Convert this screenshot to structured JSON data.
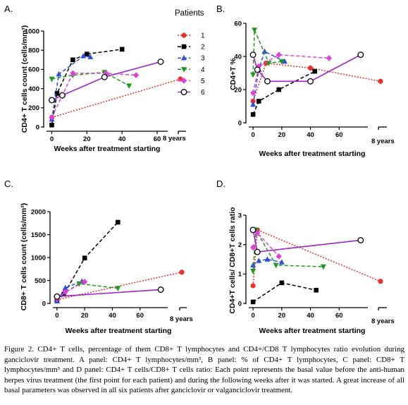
{
  "figure": {
    "caption": "Figure 2. CD4+ T cells,  percentage of them CD8+ T lymphocytes and CD4+/CD8 T lymphocytes ratio evolution during ganciclovir treatment. A panel: CD4+ T lymphocytes/mm³, B panel: % of CD4+ T lymphocytes, C panel:  CD8+ T lymphocytes/mm³ and D panel: CD4+ T cells/CD8+ T cells ratio: Each point represents the basal value before the anti-human herpes virus treatment (the first point for each patient) and during the following weeks after it was started. A great increase of all basal parameters was observed in all six patients after ganciclovir or valganciclovir treatment."
  },
  "chart_data": [
    {
      "panel": "A.",
      "type": "line",
      "xlabel": "Weeks after treatment starting",
      "ylabel": "CD4+ T cells count (cells/mm³)",
      "xlim": [
        -3,
        66
      ],
      "x_ticks": [
        "0",
        "20",
        "40",
        "60"
      ],
      "x_break_label": "8 years",
      "ylim": [
        0,
        1000
      ],
      "y_ticks": [
        "0",
        "200",
        "400",
        "600",
        "800",
        "1000"
      ],
      "legend_title": "Patients",
      "legend_position": "top-right",
      "series": [
        {
          "name": "1",
          "color": "#e8312a",
          "marker": "circle",
          "points": [
            [
              0,
              100
            ],
            [
              95,
              500
            ]
          ]
        },
        {
          "name": "2",
          "color": "#000000",
          "marker": "square",
          "points": [
            [
              0,
              20
            ],
            [
              3,
              350
            ],
            [
              12,
              700
            ],
            [
              20,
              760
            ],
            [
              40,
              810
            ]
          ]
        },
        {
          "name": "3",
          "color": "#2e4fe0",
          "marker": "triangle",
          "points": [
            [
              0,
              80
            ],
            [
              4,
              550
            ],
            [
              18,
              740
            ],
            [
              22,
              730
            ]
          ]
        },
        {
          "name": "4",
          "color": "#1e9a1e",
          "marker": "triangle-down",
          "points": [
            [
              0,
              500
            ],
            [
              12,
              540
            ],
            [
              30,
              570
            ],
            [
              44,
              430
            ]
          ]
        },
        {
          "name": "5",
          "color": "#e040d8",
          "marker": "diamond",
          "points": [
            [
              0,
              100
            ],
            [
              12,
              560
            ],
            [
              31,
              560
            ],
            [
              48,
              540
            ]
          ]
        },
        {
          "name": "6",
          "color": "#a030c8",
          "marker": "circle-open",
          "points": [
            [
              0,
              280
            ],
            [
              6,
              330
            ],
            [
              30,
              520
            ],
            [
              62,
              680
            ]
          ]
        }
      ]
    },
    {
      "panel": "B.",
      "type": "line",
      "xlabel": "Weeks after treatment starting",
      "ylabel": "CD4+T %",
      "xlim": [
        -3,
        80
      ],
      "x_ticks": [
        "0",
        "20",
        "40",
        "60"
      ],
      "x_break_label": "8 years",
      "ylim": [
        0,
        60
      ],
      "y_ticks": [
        "0",
        "20",
        "40",
        "60"
      ],
      "series": [
        {
          "name": "1",
          "color": "#e8312a",
          "marker": "circle",
          "points": [
            [
              0,
              13
            ],
            [
              9,
              36
            ],
            [
              40,
              33
            ],
            [
              95,
              25
            ]
          ]
        },
        {
          "name": "2",
          "color": "#000000",
          "marker": "square",
          "points": [
            [
              0,
              5
            ],
            [
              4,
              13
            ],
            [
              18,
              20
            ],
            [
              43,
              31
            ]
          ]
        },
        {
          "name": "3",
          "color": "#2e4fe0",
          "marker": "triangle",
          "points": [
            [
              0,
              11
            ],
            [
              4,
              32
            ],
            [
              8,
              43
            ],
            [
              22,
              37
            ]
          ]
        },
        {
          "name": "4",
          "color": "#1e9a1e",
          "marker": "triangle-down",
          "points": [
            [
              0,
              29
            ],
            [
              1,
              56
            ],
            [
              11,
              36
            ],
            [
              20,
              37
            ]
          ]
        },
        {
          "name": "5",
          "color": "#e040d8",
          "marker": "diamond",
          "points": [
            [
              0,
              18
            ],
            [
              4,
              34
            ],
            [
              18,
              41
            ],
            [
              53,
              39
            ]
          ]
        },
        {
          "name": "6",
          "color": "#a030c8",
          "marker": "circle-open",
          "points": [
            [
              0,
              41
            ],
            [
              3,
              32
            ],
            [
              10,
              25
            ],
            [
              40,
              25
            ],
            [
              75,
              41
            ]
          ]
        }
      ]
    },
    {
      "panel": "C.",
      "type": "line",
      "xlabel": "Weeks after treatment starting",
      "ylabel": "CD8+ T cells count (cells/mm³)",
      "xlim": [
        -3,
        80
      ],
      "x_ticks": [
        "0",
        "20",
        "40",
        "60"
      ],
      "x_break_label": "8 years",
      "ylim": [
        0,
        2000
      ],
      "y_ticks": [
        "0",
        "500",
        "1000",
        "1500",
        "2000"
      ],
      "series": [
        {
          "name": "1",
          "color": "#e8312a",
          "marker": "circle",
          "points": [
            [
              0,
              80
            ],
            [
              95,
              680
            ]
          ]
        },
        {
          "name": "2",
          "color": "#000000",
          "marker": "square",
          "points": [
            [
              0,
              50
            ],
            [
              5,
              200
            ],
            [
              20,
              990
            ],
            [
              44,
              1770
            ]
          ]
        },
        {
          "name": "3",
          "color": "#2e4fe0",
          "marker": "triangle",
          "points": [
            [
              0,
              50
            ],
            [
              6,
              340
            ],
            [
              18,
              480
            ]
          ]
        },
        {
          "name": "4",
          "color": "#1e9a1e",
          "marker": "triangle-down",
          "points": [
            [
              0,
              120
            ],
            [
              16,
              430
            ],
            [
              44,
              330
            ]
          ]
        },
        {
          "name": "5",
          "color": "#e040d8",
          "marker": "diamond",
          "points": [
            [
              0,
              100
            ],
            [
              6,
              250
            ],
            [
              20,
              470
            ]
          ]
        },
        {
          "name": "6",
          "color": "#a030c8",
          "marker": "circle-open",
          "points": [
            [
              0,
              150
            ],
            [
              75,
              300
            ]
          ]
        }
      ]
    },
    {
      "panel": "D.",
      "type": "line",
      "xlabel": "Weeks after treatment starting",
      "ylabel": "CD4+T cells/ CD8+T cells ratio",
      "xlim": [
        -3,
        80
      ],
      "x_ticks": [
        "0",
        "20",
        "40",
        "60"
      ],
      "x_break_label": "8 years",
      "ylim": [
        0,
        3
      ],
      "y_ticks": [
        "0",
        "1",
        "2",
        "3"
      ],
      "series": [
        {
          "name": "1",
          "color": "#e8312a",
          "marker": "circle",
          "points": [
            [
              0,
              0.6
            ],
            [
              3,
              2.5
            ],
            [
              95,
              0.75
            ]
          ]
        },
        {
          "name": "2",
          "color": "#000000",
          "marker": "square",
          "points": [
            [
              0,
              0.05
            ],
            [
              20,
              0.7
            ],
            [
              44,
              0.45
            ]
          ]
        },
        {
          "name": "3",
          "color": "#2e4fe0",
          "marker": "triangle",
          "points": [
            [
              0,
              1.3
            ],
            [
              4,
              1.45
            ],
            [
              10,
              1.5
            ],
            [
              20,
              1.4
            ]
          ]
        },
        {
          "name": "4",
          "color": "#1e9a1e",
          "marker": "triangle-down",
          "points": [
            [
              0,
              1.1
            ],
            [
              2,
              2.5
            ],
            [
              16,
              1.3
            ],
            [
              49,
              1.25
            ]
          ]
        },
        {
          "name": "5",
          "color": "#e040d8",
          "marker": "diamond",
          "points": [
            [
              0,
              1.9
            ],
            [
              3,
              2.4
            ],
            [
              18,
              1.6
            ]
          ]
        },
        {
          "name": "6",
          "color": "#a030c8",
          "marker": "circle-open",
          "points": [
            [
              0,
              2.5
            ],
            [
              3,
              1.75
            ],
            [
              75,
              2.15
            ]
          ]
        }
      ]
    }
  ]
}
